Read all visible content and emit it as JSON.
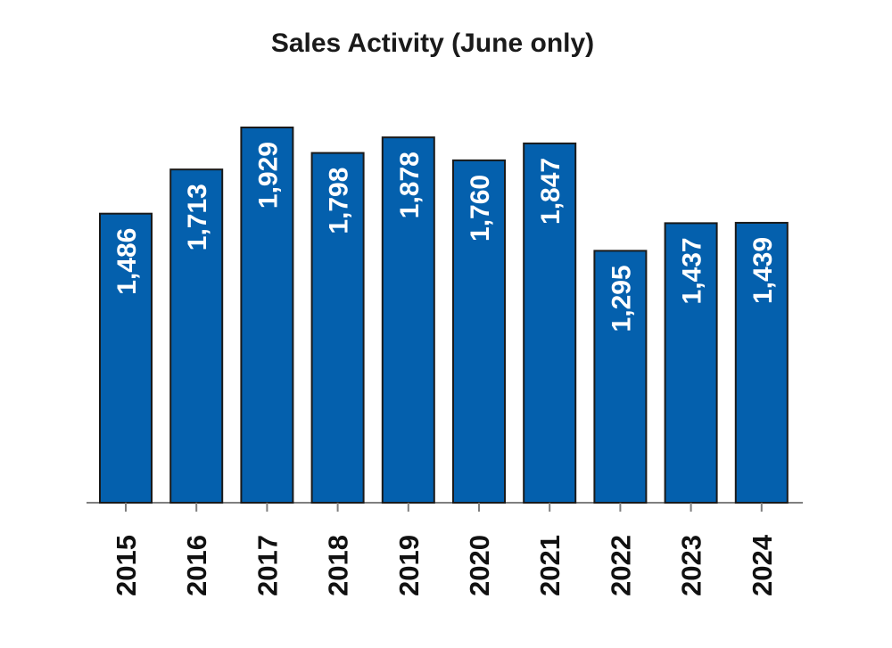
{
  "chart_data": {
    "type": "bar",
    "title": "Sales Activity (June only)",
    "categories": [
      "2015",
      "2016",
      "2017",
      "2018",
      "2019",
      "2020",
      "2021",
      "2022",
      "2023",
      "2024"
    ],
    "values": [
      1486,
      1713,
      1929,
      1798,
      1878,
      1760,
      1847,
      1295,
      1437,
      1439
    ],
    "value_labels": [
      "1,486",
      "1,713",
      "1,929",
      "1,798",
      "1,878",
      "1,760",
      "1,847",
      "1,295",
      "1,437",
      "1,439"
    ],
    "ylim": [
      0,
      1929
    ],
    "grid": false,
    "legend": "none",
    "bar_color": "#0460ad"
  }
}
